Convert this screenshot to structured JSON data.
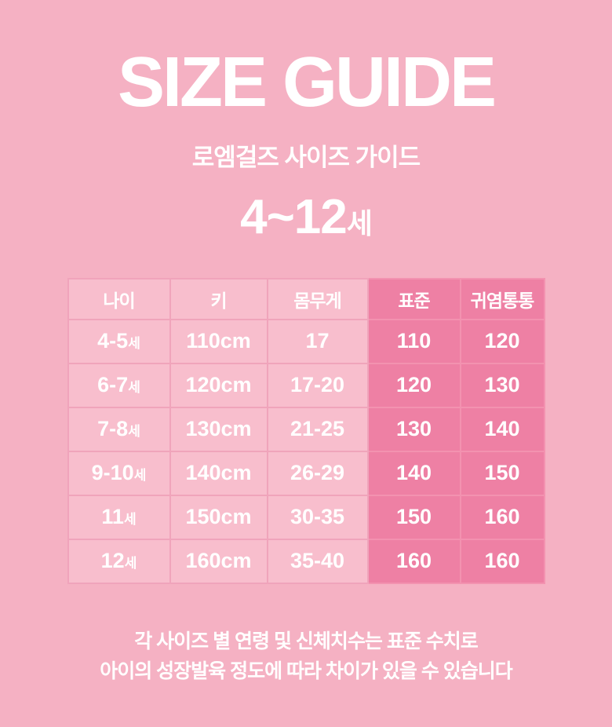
{
  "title": "SIZE GUIDE",
  "subtitle": "로엠걸즈 사이즈 가이드",
  "age_range": {
    "main": "4~12",
    "suffix": "세"
  },
  "table": {
    "headers": [
      "나이",
      "키",
      "몸무게",
      "표준",
      "귀염통통"
    ],
    "rows": [
      {
        "age": "4-5",
        "age_suffix": "세",
        "height": "110cm",
        "weight": "17",
        "standard": "110",
        "chubby": "120"
      },
      {
        "age": "6-7",
        "age_suffix": "세",
        "height": "120cm",
        "weight": "17-20",
        "standard": "120",
        "chubby": "130"
      },
      {
        "age": "7-8",
        "age_suffix": "세",
        "height": "130cm",
        "weight": "21-25",
        "standard": "130",
        "chubby": "140"
      },
      {
        "age": "9-10",
        "age_suffix": "세",
        "height": "140cm",
        "weight": "26-29",
        "standard": "140",
        "chubby": "150"
      },
      {
        "age": "11",
        "age_suffix": "세",
        "height": "150cm",
        "weight": "30-35",
        "standard": "150",
        "chubby": "160"
      },
      {
        "age": "12",
        "age_suffix": "세",
        "height": "160cm",
        "weight": "35-40",
        "standard": "160",
        "chubby": "160"
      }
    ]
  },
  "footnote": {
    "line1": "각 사이즈 별 연령 및 신체치수는 표준 수치로",
    "line2": "아이의 성장발육 정도에 따라 차이가 있을 수 있습니다"
  },
  "colors": {
    "background": "#f5b1c3",
    "cell_light": "#f8becd",
    "cell_light_border": "#f0a4bb",
    "cell_dark": "#ee80a4",
    "cell_dark_border": "#f392b0",
    "text": "#ffffff"
  }
}
